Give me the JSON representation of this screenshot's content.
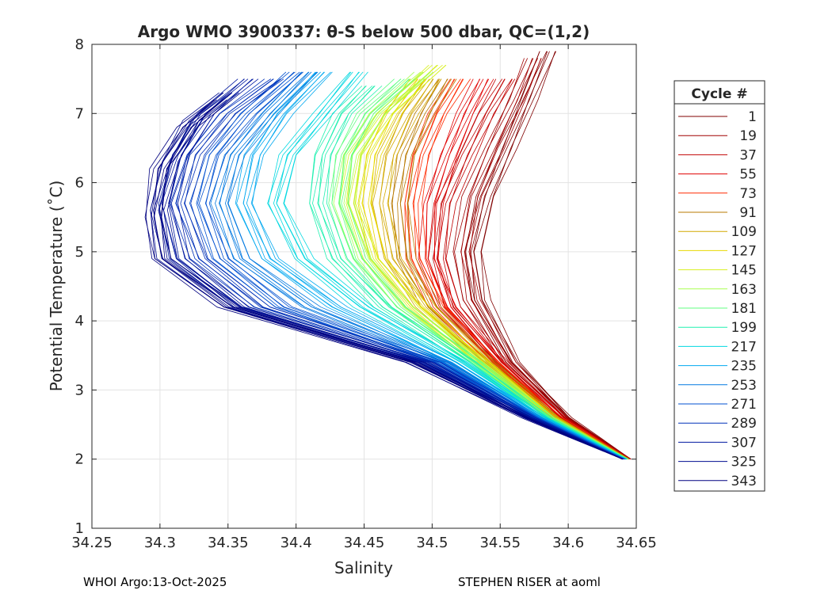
{
  "chart_data": {
    "type": "line",
    "title": "Argo WMO 3900337: θ-S below 500 dbar,  QC=(1,2)",
    "xlabel": "Salinity",
    "ylabel": "Potential Temperature (˚C)",
    "xlim": [
      34.25,
      34.65
    ],
    "ylim": [
      1,
      8
    ],
    "xticks": [
      34.25,
      34.3,
      34.35,
      34.4,
      34.45,
      34.5,
      34.55,
      34.6,
      34.65
    ],
    "xtick_labels": [
      "34.25",
      "34.3",
      "34.35",
      "34.4",
      "34.45",
      "34.5",
      "34.55",
      "34.6",
      "34.65"
    ],
    "yticks": [
      1,
      2,
      3,
      4,
      5,
      6,
      7,
      8
    ],
    "ytick_labels": [
      "1",
      "2",
      "3",
      "4",
      "5",
      "6",
      "7",
      "8"
    ],
    "grid": true,
    "legend": {
      "title": "Cycle #",
      "placement": "right-outside",
      "entries": [
        {
          "label": "1",
          "color": "#800000"
        },
        {
          "label": "19",
          "color": "#a00000"
        },
        {
          "label": "37",
          "color": "#c00000"
        },
        {
          "label": "55",
          "color": "#e00000"
        },
        {
          "label": "73",
          "color": "#ff2a00"
        },
        {
          "label": "91",
          "color": "#b87800"
        },
        {
          "label": "109",
          "color": "#d2a800"
        },
        {
          "label": "127",
          "color": "#e8d800"
        },
        {
          "label": "145",
          "color": "#d8f020"
        },
        {
          "label": "163",
          "color": "#a8ff50"
        },
        {
          "label": "181",
          "color": "#60ff80"
        },
        {
          "label": "199",
          "color": "#20f0b0"
        },
        {
          "label": "217",
          "color": "#00d8e0"
        },
        {
          "label": "235",
          "color": "#00a8f0"
        },
        {
          "label": "253",
          "color": "#0078e0"
        },
        {
          "label": "271",
          "color": "#0050d0"
        },
        {
          "label": "289",
          "color": "#0030b8"
        },
        {
          "label": "307",
          "color": "#0018a0"
        },
        {
          "label": "325",
          "color": "#000c90"
        },
        {
          "label": "343",
          "color": "#000080"
        }
      ]
    },
    "series": [
      {
        "color": "#800000",
        "x": [
          34.646,
          34.6,
          34.56,
          34.535,
          34.53,
          34.54,
          34.555,
          34.57,
          34.585
        ],
        "y": [
          2.0,
          2.6,
          3.4,
          4.3,
          5.0,
          5.8,
          6.5,
          7.2,
          7.9
        ]
      },
      {
        "color": "#a00000",
        "x": [
          34.646,
          34.598,
          34.556,
          34.528,
          34.522,
          34.53,
          34.545,
          34.562,
          34.575
        ],
        "y": [
          2.0,
          2.6,
          3.4,
          4.3,
          5.0,
          5.8,
          6.5,
          7.2,
          7.8
        ]
      },
      {
        "color": "#c00000",
        "x": [
          34.645,
          34.595,
          34.55,
          34.515,
          34.505,
          34.51,
          34.525,
          34.54,
          34.555
        ],
        "y": [
          2.0,
          2.6,
          3.4,
          4.2,
          4.9,
          5.7,
          6.4,
          7.0,
          7.5
        ]
      },
      {
        "color": "#e00000",
        "x": [
          34.645,
          34.594,
          34.548,
          34.512,
          34.498,
          34.5,
          34.512,
          34.525,
          34.538
        ],
        "y": [
          2.0,
          2.6,
          3.4,
          4.2,
          4.9,
          5.7,
          6.4,
          7.0,
          7.5
        ]
      },
      {
        "color": "#ff2a00",
        "x": [
          34.645,
          34.592,
          34.545,
          34.505,
          34.488,
          34.485,
          34.492,
          34.505,
          34.52
        ],
        "y": [
          2.0,
          2.6,
          3.4,
          4.2,
          4.9,
          5.7,
          6.4,
          7.0,
          7.5
        ]
      },
      {
        "color": "#b87800",
        "x": [
          34.645,
          34.591,
          34.543,
          34.5,
          34.48,
          34.476,
          34.482,
          34.495,
          34.51
        ],
        "y": [
          2.0,
          2.6,
          3.4,
          4.2,
          4.9,
          5.7,
          6.4,
          7.0,
          7.5
        ]
      },
      {
        "color": "#d2a800",
        "x": [
          34.644,
          34.59,
          34.54,
          34.495,
          34.47,
          34.462,
          34.468,
          34.482,
          34.5
        ],
        "y": [
          2.0,
          2.6,
          3.4,
          4.2,
          4.9,
          5.7,
          6.4,
          7.0,
          7.5
        ]
      },
      {
        "color": "#e8d800",
        "x": [
          34.644,
          34.589,
          34.538,
          34.49,
          34.46,
          34.45,
          34.455,
          34.47,
          34.49
        ],
        "y": [
          2.0,
          2.6,
          3.4,
          4.2,
          4.9,
          5.7,
          6.4,
          7.0,
          7.5
        ]
      },
      {
        "color": "#d8f020",
        "x": [
          34.644,
          34.588,
          34.536,
          34.485,
          34.455,
          34.44,
          34.445,
          34.465,
          34.505
        ],
        "y": [
          2.0,
          2.6,
          3.4,
          4.2,
          4.9,
          5.7,
          6.4,
          7.0,
          7.7
        ]
      },
      {
        "color": "#a8ff50",
        "x": [
          34.644,
          34.587,
          34.534,
          34.48,
          34.45,
          34.435,
          34.44,
          34.46,
          34.495
        ],
        "y": [
          2.0,
          2.6,
          3.4,
          4.2,
          4.9,
          5.7,
          6.4,
          7.0,
          7.6
        ]
      },
      {
        "color": "#60ff80",
        "x": [
          34.644,
          34.586,
          34.532,
          34.475,
          34.445,
          34.43,
          34.435,
          34.452,
          34.48
        ],
        "y": [
          2.0,
          2.6,
          3.4,
          4.2,
          4.9,
          5.7,
          6.4,
          7.0,
          7.5
        ]
      },
      {
        "color": "#20f0b0",
        "x": [
          34.643,
          34.584,
          34.528,
          34.465,
          34.43,
          34.415,
          34.42,
          34.435,
          34.455
        ],
        "y": [
          2.0,
          2.6,
          3.4,
          4.2,
          4.9,
          5.7,
          6.4,
          7.0,
          7.4
        ]
      },
      {
        "color": "#00d8e0",
        "x": [
          34.643,
          34.582,
          34.522,
          34.45,
          34.405,
          34.385,
          34.395,
          34.42,
          34.445
        ],
        "y": [
          2.0,
          2.6,
          3.4,
          4.2,
          4.9,
          5.7,
          6.4,
          7.0,
          7.6
        ]
      },
      {
        "color": "#00a8f0",
        "x": [
          34.642,
          34.58,
          34.515,
          34.43,
          34.38,
          34.362,
          34.37,
          34.39,
          34.42
        ],
        "y": [
          2.0,
          2.6,
          3.4,
          4.2,
          4.9,
          5.7,
          6.4,
          7.0,
          7.6
        ]
      },
      {
        "color": "#0078e0",
        "x": [
          34.642,
          34.578,
          34.51,
          34.41,
          34.36,
          34.345,
          34.355,
          34.38,
          34.41
        ],
        "y": [
          2.0,
          2.6,
          3.4,
          4.2,
          4.9,
          5.7,
          6.4,
          7.0,
          7.6
        ]
      },
      {
        "color": "#0050d0",
        "x": [
          34.641,
          34.576,
          34.505,
          34.39,
          34.345,
          34.33,
          34.34,
          34.365,
          34.4
        ],
        "y": [
          2.0,
          2.6,
          3.4,
          4.2,
          4.9,
          5.7,
          6.4,
          7.0,
          7.6
        ]
      },
      {
        "color": "#0030b8",
        "x": [
          34.641,
          34.574,
          34.5,
          34.375,
          34.33,
          34.315,
          34.325,
          34.35,
          34.385
        ],
        "y": [
          2.0,
          2.6,
          3.4,
          4.2,
          4.9,
          5.7,
          6.4,
          7.0,
          7.5
        ]
      },
      {
        "color": "#0018a0",
        "x": [
          34.64,
          34.572,
          34.495,
          34.36,
          34.315,
          34.305,
          34.315,
          34.335,
          34.365
        ],
        "y": [
          2.0,
          2.6,
          3.4,
          4.2,
          4.9,
          5.7,
          6.4,
          7.0,
          7.5
        ]
      },
      {
        "color": "#000c90",
        "x": [
          34.64,
          34.57,
          34.49,
          34.355,
          34.305,
          34.298,
          34.308,
          34.325,
          34.35
        ],
        "y": [
          2.0,
          2.6,
          3.4,
          4.2,
          4.9,
          5.6,
          6.3,
          6.9,
          7.3
        ]
      },
      {
        "color": "#000080",
        "x": [
          34.64,
          34.568,
          34.485,
          34.35,
          34.3,
          34.295,
          34.3,
          34.32,
          34.345
        ],
        "y": [
          2.0,
          2.6,
          3.4,
          4.2,
          4.9,
          5.5,
          6.2,
          6.8,
          7.2
        ]
      }
    ]
  },
  "footer": {
    "left": "WHOI Argo:13-Oct-2025",
    "right": "STEPHEN RISER at aoml"
  }
}
